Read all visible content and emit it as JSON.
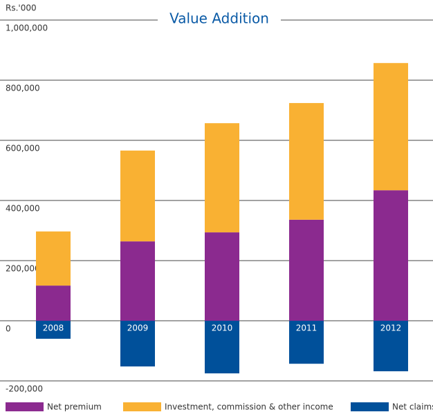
{
  "chart_data": {
    "type": "stacked_bar",
    "title": "Value Addition",
    "y_axis_label": "Rs.'000",
    "categories": [
      "2008",
      "2009",
      "2010",
      "2011",
      "2012"
    ],
    "series": [
      {
        "name": "Net premium",
        "color": "#8b2a8f",
        "values": [
          117000,
          264000,
          294000,
          336000,
          434000
        ]
      },
      {
        "name": "Investment, commission & other income",
        "color": "#f9b133",
        "values": [
          180000,
          302000,
          363000,
          388000,
          423000
        ]
      },
      {
        "name": "Net claims",
        "color": "#00509a",
        "values": [
          -60000,
          -152000,
          -175000,
          -143000,
          -168000
        ]
      }
    ],
    "ylim": [
      -200000,
      1000000
    ],
    "yticks": [
      {
        "value": -200000,
        "label": "-200,000"
      },
      0,
      {
        "value": 200000,
        "label": "200,000"
      },
      {
        "value": 400000,
        "label": "400,000"
      },
      {
        "value": 600000,
        "label": "600,000"
      },
      {
        "value": 800000,
        "label": "800,000"
      },
      {
        "value": 1000000,
        "label": "1,000,000"
      }
    ],
    "grid": true
  }
}
